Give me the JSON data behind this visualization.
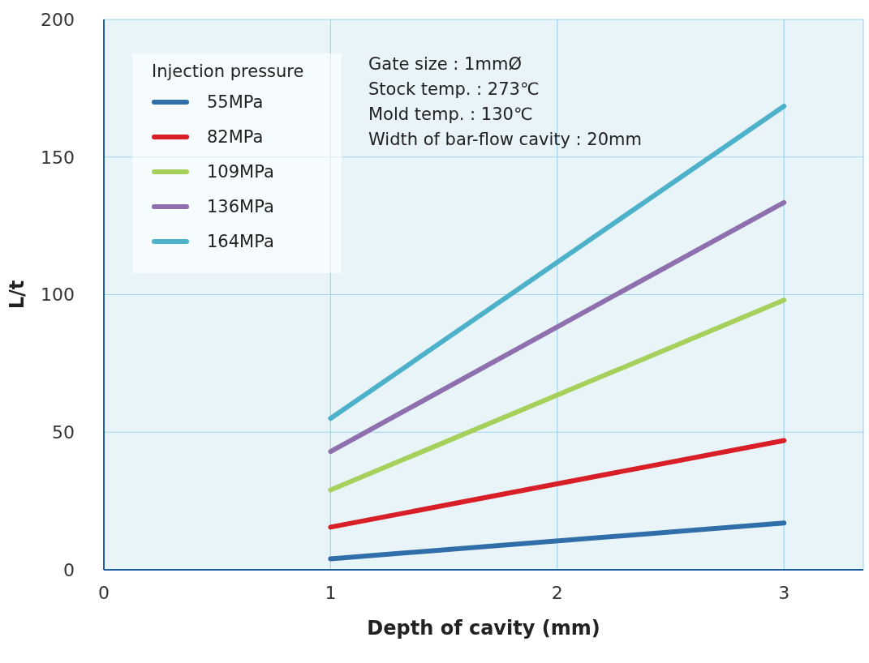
{
  "chart_data": {
    "type": "line",
    "xlabel": "Depth of cavity (mm)",
    "ylabel": "L/t",
    "legend_title": "Injection pressure",
    "x": [
      1,
      3
    ],
    "series": [
      {
        "name": "55MPa",
        "color": "#2f6ea8",
        "values": [
          4,
          17
        ]
      },
      {
        "name": "82MPa",
        "color": "#d81e26",
        "values": [
          15.5,
          47
        ]
      },
      {
        "name": "109MPa",
        "color": "#a6d05c",
        "values": [
          29,
          98
        ]
      },
      {
        "name": "136MPa",
        "color": "#8d70ad",
        "values": [
          43,
          133.5
        ]
      },
      {
        "name": "164MPa",
        "color": "#4db2c9",
        "values": [
          55,
          168.5
        ]
      }
    ],
    "xlim": [
      0,
      3.35
    ],
    "xticks": [
      0,
      1,
      2,
      3
    ],
    "ylim": [
      0,
      200
    ],
    "yticks": [
      0,
      50,
      100,
      150,
      200
    ],
    "grid": true,
    "legend": "top left",
    "marker": "none",
    "line_style": "solid",
    "annotations": [
      "Gate size : 1mmØ",
      "Stock temp. : 273℃",
      "Mold temp. : 130℃",
      "Width of bar-flow cavity : 20mm"
    ]
  }
}
